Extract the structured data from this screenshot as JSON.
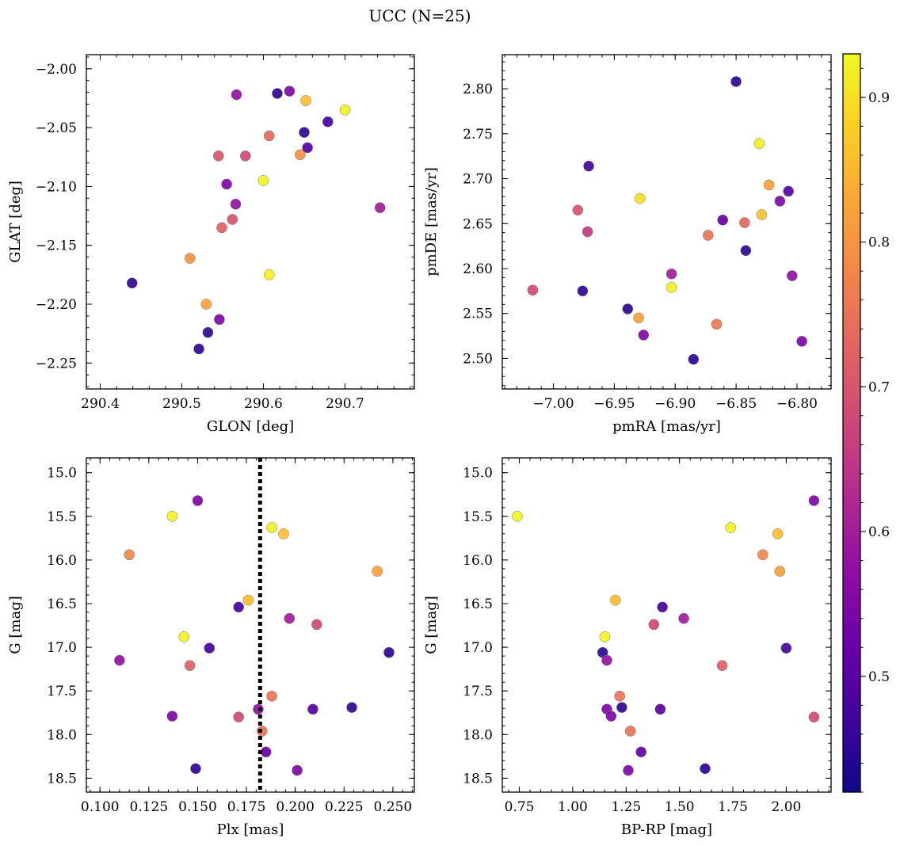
{
  "figure": {
    "suptitle": "UCC (N=25)",
    "colorbar": {
      "cmap": "plasma",
      "range": [
        0.42,
        0.93
      ],
      "ticks": [
        0.5,
        0.6,
        0.7,
        0.8,
        0.9
      ]
    }
  },
  "chart_data": [
    {
      "type": "scatter",
      "id": "glon-glat",
      "xlabel": "GLON [deg]",
      "ylabel": "GLAT [deg]",
      "xlim": [
        290.383,
        290.785
      ],
      "ylim": [
        -2.272,
        -1.988
      ],
      "xticks": [
        290.4,
        290.5,
        290.6,
        290.7
      ],
      "yticks": [
        -2.0,
        -2.05,
        -2.1,
        -2.15,
        -2.2,
        -2.25
      ],
      "tick_decimals": [
        1,
        2
      ],
      "points": [
        {
          "x": 290.439,
          "y": -2.182,
          "c": 0.45
        },
        {
          "x": 290.51,
          "y": -2.161,
          "c": 0.8
        },
        {
          "x": 290.521,
          "y": -2.238,
          "c": 0.45
        },
        {
          "x": 290.53,
          "y": -2.2,
          "c": 0.82
        },
        {
          "x": 290.532,
          "y": -2.224,
          "c": 0.45
        },
        {
          "x": 290.545,
          "y": -2.074,
          "c": 0.7
        },
        {
          "x": 290.546,
          "y": -2.213,
          "c": 0.55
        },
        {
          "x": 290.549,
          "y": -2.135,
          "c": 0.72
        },
        {
          "x": 290.555,
          "y": -2.098,
          "c": 0.55
        },
        {
          "x": 290.562,
          "y": -2.128,
          "c": 0.7
        },
        {
          "x": 290.566,
          "y": -2.115,
          "c": 0.58
        },
        {
          "x": 290.567,
          "y": -2.022,
          "c": 0.58
        },
        {
          "x": 290.578,
          "y": -2.074,
          "c": 0.68
        },
        {
          "x": 290.6,
          "y": -2.095,
          "c": 0.92
        },
        {
          "x": 290.607,
          "y": -2.175,
          "c": 0.92
        },
        {
          "x": 290.607,
          "y": -2.057,
          "c": 0.73
        },
        {
          "x": 290.617,
          "y": -2.021,
          "c": 0.45
        },
        {
          "x": 290.632,
          "y": -2.019,
          "c": 0.55
        },
        {
          "x": 290.645,
          "y": -2.073,
          "c": 0.8
        },
        {
          "x": 290.65,
          "y": -2.054,
          "c": 0.45
        },
        {
          "x": 290.652,
          "y": -2.027,
          "c": 0.86
        },
        {
          "x": 290.654,
          "y": -2.067,
          "c": 0.5
        },
        {
          "x": 290.679,
          "y": -2.045,
          "c": 0.48
        },
        {
          "x": 290.7,
          "y": -2.035,
          "c": 0.92
        },
        {
          "x": 290.743,
          "y": -2.118,
          "c": 0.6
        }
      ]
    },
    {
      "type": "scatter",
      "id": "pmra-pmde",
      "xlabel": "pmRA [mas/yr]",
      "ylabel": "pmDE [mas/yr]",
      "xlim": [
        -7.042,
        -6.772
      ],
      "ylim": [
        2.466,
        2.838
      ],
      "xticks": [
        -7.0,
        -6.95,
        -6.9,
        -6.85,
        -6.8
      ],
      "yticks": [
        2.5,
        2.55,
        2.6,
        2.65,
        2.7,
        2.75,
        2.8
      ],
      "tick_decimals": [
        2,
        2
      ],
      "points": [
        {
          "x": -7.017,
          "y": 2.576,
          "c": 0.68
        },
        {
          "x": -6.98,
          "y": 2.665,
          "c": 0.7
        },
        {
          "x": -6.976,
          "y": 2.575,
          "c": 0.45
        },
        {
          "x": -6.972,
          "y": 2.641,
          "c": 0.65
        },
        {
          "x": -6.971,
          "y": 2.714,
          "c": 0.48
        },
        {
          "x": -6.939,
          "y": 2.555,
          "c": 0.45
        },
        {
          "x": -6.93,
          "y": 2.545,
          "c": 0.82
        },
        {
          "x": -6.929,
          "y": 2.678,
          "c": 0.9
        },
        {
          "x": -6.926,
          "y": 2.526,
          "c": 0.55
        },
        {
          "x": -6.903,
          "y": 2.579,
          "c": 0.92
        },
        {
          "x": -6.903,
          "y": 2.594,
          "c": 0.6
        },
        {
          "x": -6.885,
          "y": 2.499,
          "c": 0.45
        },
        {
          "x": -6.873,
          "y": 2.637,
          "c": 0.75
        },
        {
          "x": -6.866,
          "y": 2.538,
          "c": 0.76
        },
        {
          "x": -6.861,
          "y": 2.654,
          "c": 0.52
        },
        {
          "x": -6.85,
          "y": 2.808,
          "c": 0.45
        },
        {
          "x": -6.843,
          "y": 2.651,
          "c": 0.73
        },
        {
          "x": -6.842,
          "y": 2.62,
          "c": 0.45
        },
        {
          "x": -6.831,
          "y": 2.739,
          "c": 0.92
        },
        {
          "x": -6.829,
          "y": 2.66,
          "c": 0.86
        },
        {
          "x": -6.823,
          "y": 2.693,
          "c": 0.82
        },
        {
          "x": -6.814,
          "y": 2.675,
          "c": 0.55
        },
        {
          "x": -6.807,
          "y": 2.686,
          "c": 0.5
        },
        {
          "x": -6.804,
          "y": 2.592,
          "c": 0.58
        },
        {
          "x": -6.796,
          "y": 2.519,
          "c": 0.55
        }
      ]
    },
    {
      "type": "scatter",
      "id": "plx-g",
      "xlabel": "Plx [mas]",
      "ylabel": "G [mag]",
      "xlim": [
        0.093,
        0.261
      ],
      "ylim": [
        18.66,
        14.83
      ],
      "xticks": [
        0.1,
        0.125,
        0.15,
        0.175,
        0.2,
        0.225,
        0.25
      ],
      "yticks": [
        15.0,
        15.5,
        16.0,
        16.5,
        17.0,
        17.5,
        18.0,
        18.5
      ],
      "tick_decimals": [
        3,
        1
      ],
      "vline": {
        "x": 0.182,
        "style": "dotted"
      },
      "points": [
        {
          "x": 0.11,
          "y": 17.15,
          "c": 0.58
        },
        {
          "x": 0.115,
          "y": 15.94,
          "c": 0.78
        },
        {
          "x": 0.137,
          "y": 15.5,
          "c": 0.92
        },
        {
          "x": 0.137,
          "y": 17.79,
          "c": 0.55
        },
        {
          "x": 0.143,
          "y": 16.88,
          "c": 0.92
        },
        {
          "x": 0.146,
          "y": 17.21,
          "c": 0.72
        },
        {
          "x": 0.149,
          "y": 18.39,
          "c": 0.45
        },
        {
          "x": 0.15,
          "y": 15.32,
          "c": 0.55
        },
        {
          "x": 0.156,
          "y": 17.01,
          "c": 0.48
        },
        {
          "x": 0.171,
          "y": 16.54,
          "c": 0.48
        },
        {
          "x": 0.171,
          "y": 17.8,
          "c": 0.68
        },
        {
          "x": 0.176,
          "y": 16.46,
          "c": 0.86
        },
        {
          "x": 0.181,
          "y": 17.71,
          "c": 0.58
        },
        {
          "x": 0.183,
          "y": 17.96,
          "c": 0.75
        },
        {
          "x": 0.185,
          "y": 18.2,
          "c": 0.52
        },
        {
          "x": 0.188,
          "y": 15.63,
          "c": 0.92
        },
        {
          "x": 0.188,
          "y": 17.56,
          "c": 0.75
        },
        {
          "x": 0.194,
          "y": 15.7,
          "c": 0.86
        },
        {
          "x": 0.197,
          "y": 16.67,
          "c": 0.6
        },
        {
          "x": 0.201,
          "y": 18.41,
          "c": 0.55
        },
        {
          "x": 0.209,
          "y": 17.71,
          "c": 0.5
        },
        {
          "x": 0.211,
          "y": 16.74,
          "c": 0.68
        },
        {
          "x": 0.229,
          "y": 17.69,
          "c": 0.45
        },
        {
          "x": 0.242,
          "y": 16.13,
          "c": 0.82
        },
        {
          "x": 0.248,
          "y": 17.06,
          "c": 0.45
        }
      ]
    },
    {
      "type": "scatter",
      "id": "bprp-g",
      "xlabel": "BP-RP [mag]",
      "ylabel": "G [mag]",
      "xlim": [
        0.67,
        2.21
      ],
      "ylim": [
        18.66,
        14.83
      ],
      "xticks": [
        0.75,
        1.0,
        1.25,
        1.5,
        1.75,
        2.0
      ],
      "yticks": [
        15.0,
        15.5,
        16.0,
        16.5,
        17.0,
        17.5,
        18.0,
        18.5
      ],
      "tick_decimals": [
        2,
        1
      ],
      "points": [
        {
          "x": 0.74,
          "y": 15.5,
          "c": 0.92
        },
        {
          "x": 1.14,
          "y": 17.06,
          "c": 0.45
        },
        {
          "x": 1.15,
          "y": 16.88,
          "c": 0.92
        },
        {
          "x": 1.16,
          "y": 17.15,
          "c": 0.58
        },
        {
          "x": 1.16,
          "y": 17.71,
          "c": 0.55
        },
        {
          "x": 1.18,
          "y": 17.79,
          "c": 0.55
        },
        {
          "x": 1.2,
          "y": 16.46,
          "c": 0.86
        },
        {
          "x": 1.22,
          "y": 17.56,
          "c": 0.75
        },
        {
          "x": 1.23,
          "y": 17.69,
          "c": 0.45
        },
        {
          "x": 1.26,
          "y": 18.41,
          "c": 0.55
        },
        {
          "x": 1.27,
          "y": 17.96,
          "c": 0.75
        },
        {
          "x": 1.32,
          "y": 18.2,
          "c": 0.52
        },
        {
          "x": 1.38,
          "y": 16.74,
          "c": 0.68
        },
        {
          "x": 1.41,
          "y": 17.71,
          "c": 0.5
        },
        {
          "x": 1.42,
          "y": 16.54,
          "c": 0.48
        },
        {
          "x": 1.52,
          "y": 16.67,
          "c": 0.6
        },
        {
          "x": 1.62,
          "y": 18.39,
          "c": 0.45
        },
        {
          "x": 1.7,
          "y": 17.21,
          "c": 0.72
        },
        {
          "x": 1.74,
          "y": 15.63,
          "c": 0.92
        },
        {
          "x": 1.89,
          "y": 15.94,
          "c": 0.78
        },
        {
          "x": 1.96,
          "y": 15.7,
          "c": 0.86
        },
        {
          "x": 1.97,
          "y": 16.13,
          "c": 0.82
        },
        {
          "x": 2.0,
          "y": 17.01,
          "c": 0.48
        },
        {
          "x": 2.13,
          "y": 15.32,
          "c": 0.55
        },
        {
          "x": 2.13,
          "y": 17.8,
          "c": 0.68
        }
      ]
    }
  ]
}
